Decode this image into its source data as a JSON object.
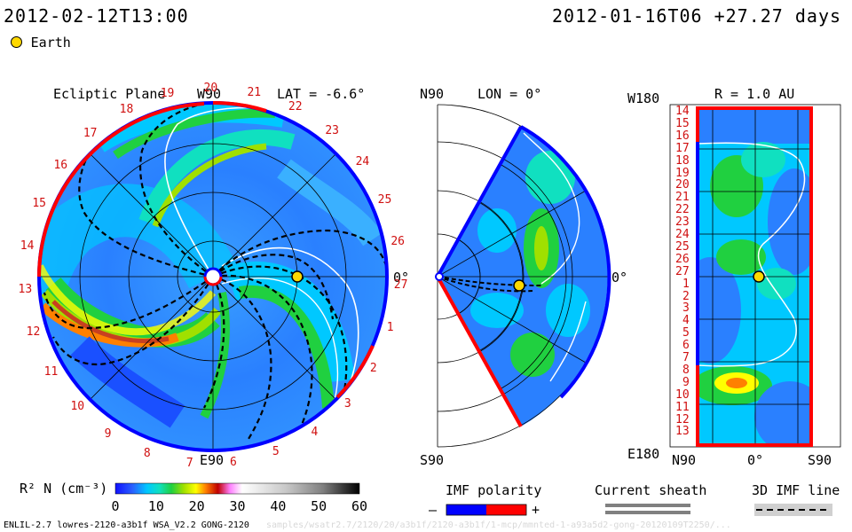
{
  "header": {
    "date_left": "2012-02-12T13:00",
    "date_right": "2012-01-16T06 +27.27 days"
  },
  "legend_earth": {
    "label": "Earth"
  },
  "panel_ecliptic": {
    "title": "Ecliptic Plane",
    "lat_label": "LAT = -6.6°",
    "top_label": "W90",
    "bottom_label": "E90",
    "right_label": "0°",
    "rotation_numbers": [
      "19",
      "20",
      "21",
      "22",
      "23",
      "24",
      "25",
      "26",
      "27",
      "1",
      "2",
      "3",
      "4",
      "5",
      "6",
      "7",
      "8",
      "9",
      "10",
      "11",
      "12",
      "13",
      "14",
      "15",
      "16",
      "17",
      "18"
    ]
  },
  "panel_meridional": {
    "top_label": "N90",
    "lon_label": "LON = 0°",
    "right_label": "0°",
    "bottom_label": "S90"
  },
  "panel_sphere": {
    "title": "R = 1.0 AU",
    "top_left": "W180",
    "bottom_left": "E180",
    "bottom_axis": [
      "N90",
      "0°",
      "S90"
    ],
    "rows": [
      "14",
      "15",
      "16",
      "17",
      "18",
      "19",
      "20",
      "21",
      "22",
      "23",
      "24",
      "25",
      "26",
      "27",
      "1",
      "2",
      "3",
      "4",
      "5",
      "6",
      "7",
      "8",
      "9",
      "10",
      "11",
      "12",
      "13"
    ]
  },
  "colorbar": {
    "label": "R² N (cm⁻³)",
    "ticks": [
      "0",
      "10",
      "20",
      "30",
      "40",
      "50",
      "60"
    ],
    "stops": [
      "#1010ff",
      "#2a60ff",
      "#00c8ff",
      "#10e0c0",
      "#20d040",
      "#a0e000",
      "#ffff00",
      "#ff8000",
      "#c00000",
      "#ff80ff",
      "#ffffff",
      "#c8c8c8",
      "#808080",
      "#000000"
    ]
  },
  "imf_polarity": {
    "title": "IMF polarity",
    "minus": "–",
    "plus": "+",
    "colors": [
      "#0000ff",
      "#ff0000"
    ]
  },
  "current_sheath": {
    "title": "Current sheath"
  },
  "imf_line": {
    "title": "3D IMF line"
  },
  "footer": {
    "text": "ENLIL-2.7 lowres-2120-a3b1f WSA_V2.2 GONG-2120",
    "faint": "samples/wsatr2.7/2120/20/a3b1f/2120-a3b1f/1-mcp/mmnted-1-a93a5d2-gong-20120109T2250/..."
  }
}
